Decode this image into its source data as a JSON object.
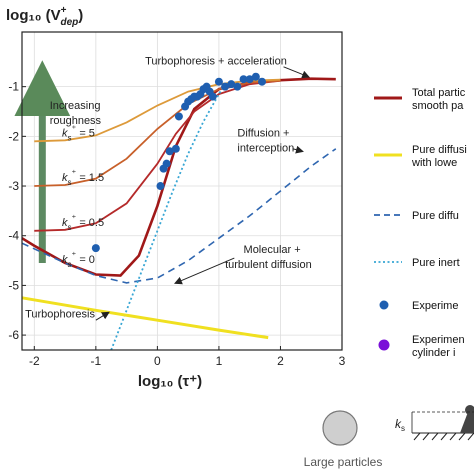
{
  "chart_data": {
    "type": "line",
    "xlabel": "log₁₀ (τ⁺)",
    "ylabel_prefix": "log₁₀ (V",
    "ylabel_sup": "+",
    "ylabel_sub": "dep",
    "ylabel_suffix": ")",
    "xlim": [
      -2.2,
      3.0
    ],
    "ylim": [
      -6.3,
      0.1
    ],
    "x_ticks": [
      "-2",
      "-1",
      "0",
      "1",
      "2",
      "3"
    ],
    "y_ticks": [
      "-1",
      "-2",
      "-3",
      "-4",
      "-5",
      "-6"
    ],
    "grid": true,
    "series": [
      {
        "name": "kₛ⁺ = 0",
        "color": "#a01818",
        "x": [
          -2.2,
          -2,
          -1.5,
          -1,
          -0.6,
          -0.3,
          0,
          0.3,
          0.6,
          1,
          1.5,
          2,
          2.5,
          2.9
        ],
        "y": [
          -4.05,
          -4.2,
          -4.55,
          -4.78,
          -4.8,
          -4.4,
          -3.4,
          -2.2,
          -1.45,
          -1.05,
          -0.92,
          -0.87,
          -0.84,
          -0.85
        ]
      },
      {
        "name": "kₛ⁺ = 0.5",
        "color": "#b52a2a",
        "x": [
          -2,
          -1.5,
          -1,
          -0.5,
          0,
          0.3,
          0.6,
          1,
          1.5,
          2
        ],
        "y": [
          -3.9,
          -3.88,
          -3.75,
          -3.35,
          -2.55,
          -1.95,
          -1.5,
          -1.15,
          -0.95,
          -0.88
        ]
      },
      {
        "name": "kₛ⁺ = 1.5",
        "color": "#c8602a",
        "x": [
          -2,
          -1.5,
          -1,
          -0.5,
          0,
          0.5,
          1,
          1.5,
          2
        ],
        "y": [
          -3.0,
          -2.98,
          -2.85,
          -2.45,
          -1.85,
          -1.35,
          -1.05,
          -0.92,
          -0.88
        ]
      },
      {
        "name": "kₛ⁺ = 5",
        "color": "#dd9a3a",
        "x": [
          -2,
          -1.5,
          -1,
          -0.5,
          0,
          0.5,
          1,
          1.5,
          2
        ],
        "y": [
          -2.1,
          -2.08,
          -1.98,
          -1.72,
          -1.38,
          -1.1,
          -0.95,
          -0.88,
          -0.86
        ]
      },
      {
        "name": "Pure diffusion + interception",
        "color": "#2f66b0",
        "dash": true,
        "x": [
          -2.2,
          -1.5,
          -1,
          -0.5,
          0,
          0.5,
          1,
          1.5,
          2,
          2.5,
          2.9
        ],
        "y": [
          -4.15,
          -4.55,
          -4.8,
          -4.95,
          -4.85,
          -4.5,
          -4.05,
          -3.6,
          -3.1,
          -2.6,
          -2.25
        ]
      },
      {
        "name": "Pure inertia",
        "color": "#38a6d4",
        "dotted": true,
        "x": [
          -0.75,
          -0.5,
          -0.25,
          0,
          0.25,
          0.5,
          0.75,
          1.0,
          1.1
        ],
        "y": [
          -6.3,
          -5.5,
          -4.7,
          -3.9,
          -3.1,
          -2.35,
          -1.7,
          -1.15,
          -0.95
        ]
      },
      {
        "name": "Pure diffusion with lower",
        "color": "#f0e020",
        "x": [
          -2.2,
          -1,
          0,
          1,
          1.8
        ],
        "y": [
          -5.25,
          -5.5,
          -5.7,
          -5.9,
          -6.05
        ]
      }
    ],
    "experiment_points": {
      "x": [
        -1.0,
        0.05,
        0.1,
        0.15,
        0.2,
        0.3,
        0.35,
        0.45,
        0.5,
        0.55,
        0.6,
        0.65,
        0.7,
        0.75,
        0.8,
        0.85,
        0.9,
        1.0,
        1.1,
        1.2,
        1.3,
        1.4,
        1.5,
        1.6,
        1.7
      ],
      "y": [
        -4.25,
        -3.0,
        -2.65,
        -2.55,
        -2.3,
        -2.25,
        -1.6,
        -1.4,
        -1.3,
        -1.25,
        -1.2,
        -1.2,
        -1.15,
        -1.05,
        -1.0,
        -1.1,
        -1.2,
        -0.9,
        -1.0,
        -0.95,
        -1.0,
        -0.85,
        -0.85,
        -0.8,
        -0.9
      ]
    },
    "annotations": [
      {
        "text": "Turbophoresis + acceleration",
        "x": -0.2,
        "y": -0.55
      },
      {
        "text": "Increasing",
        "x": -1.75,
        "y": -1.45
      },
      {
        "text": "roughness",
        "x": -1.75,
        "y": -1.75
      },
      {
        "text": "Diffusion +",
        "x": 1.3,
        "y": -2.0
      },
      {
        "text": "interception",
        "x": 1.3,
        "y": -2.3
      },
      {
        "text": "Molecular +",
        "x": 1.4,
        "y": -4.35
      },
      {
        "text": "turbulent diffusion",
        "x": 1.1,
        "y": -4.65
      },
      {
        "text": "Turbophoresis",
        "x": -2.15,
        "y": -5.65
      }
    ],
    "ks_labels": [
      {
        "value": "5",
        "x": -1.55,
        "y": -2.0
      },
      {
        "value": "1.5",
        "x": -1.55,
        "y": -2.9
      },
      {
        "value": "0.5",
        "x": -1.55,
        "y": -3.8
      },
      {
        "value": "0",
        "x": -1.55,
        "y": -4.55
      }
    ],
    "legend": {
      "placement": "right",
      "items": [
        {
          "text1": "Total partic",
          "text2": "smooth pa",
          "color": "#a01818",
          "style": "solid"
        },
        {
          "text1": "Pure diffusi",
          "text2": "with lowe",
          "color": "#f0e020",
          "style": "solid"
        },
        {
          "text1": "Pure diffu",
          "text2": "",
          "color": "#2f66b0",
          "style": "dash"
        },
        {
          "text1": "Pure inert",
          "text2": "",
          "color": "#38a6d4",
          "style": "dot"
        },
        {
          "text1": "Experime",
          "text2": "",
          "color": "#1f5fb0",
          "style": "marker"
        },
        {
          "text1": "Experimen",
          "text2": "cylinder i",
          "color": "#7a10d8",
          "style": "marker"
        }
      ]
    },
    "bottom_label": "Large particles",
    "ks_symbol": "k",
    "ks_sub": "s"
  }
}
